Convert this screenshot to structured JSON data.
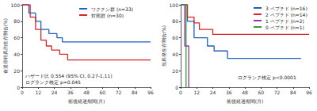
{
  "chart_data": [
    {
      "type": "line",
      "line_style": "step",
      "grid": false,
      "legend": "upper right",
      "x_label": "術後経過期間(月)",
      "y_label": "食道癌特異的生存割合(%)",
      "xlim": [
        0,
        96
      ],
      "xticks": [
        0,
        12,
        24,
        36,
        48,
        60,
        72,
        84,
        96
      ],
      "ylim": [
        0,
        100
      ],
      "yticks": [
        0,
        20,
        40,
        60,
        80,
        100
      ],
      "annotations": [
        "ハザード比 0.554 (95% CI, 0.27-1.11)",
        "ログランク検定 p=0.045"
      ],
      "series": [
        {
          "name": "ワクチン群 (n=33)",
          "color": "#1f5fbf",
          "x": [
            0,
            5,
            10,
            14,
            20,
            26,
            30,
            96
          ],
          "values": [
            100,
            90,
            80,
            70,
            65,
            60,
            55,
            55
          ]
        },
        {
          "name": "対照群 (n=30)",
          "color": "#d62728",
          "x": [
            0,
            6,
            10,
            14,
            18,
            22,
            28,
            34,
            96
          ],
          "values": [
            100,
            85,
            70,
            57,
            50,
            45,
            40,
            33,
            33
          ]
        }
      ]
    },
    {
      "type": "line",
      "line_style": "step",
      "grid": false,
      "legend": "upper right",
      "x_label": "術後経過期間(月)",
      "y_label": "無再発生存割合(%)",
      "xlim": [
        0,
        96
      ],
      "xticks": [
        0,
        12,
        24,
        36,
        48,
        60,
        72,
        84,
        96
      ],
      "ylim": [
        0,
        100
      ],
      "yticks": [
        0,
        20,
        40,
        60,
        80,
        100
      ],
      "annotations": [
        "ログランク検定 p<0.0001"
      ],
      "series": [
        {
          "name": "3 ペプチド (n=16)",
          "color": "#1f5fbf",
          "x": [
            0,
            5,
            10,
            20,
            25,
            35,
            90
          ],
          "values": [
            100,
            80,
            60,
            50,
            44,
            35,
            35
          ]
        },
        {
          "name": "2 ペプチド (n=14)",
          "color": "#d62728",
          "x": [
            0,
            5,
            10,
            14,
            24,
            96
          ],
          "values": [
            100,
            85,
            78,
            70,
            64,
            64
          ]
        },
        {
          "name": "1 ペプチド (n=2)",
          "color": "#9b30b0",
          "x": [
            0,
            3,
            6
          ],
          "values": [
            100,
            50,
            0
          ]
        },
        {
          "name": "0 ペプチド (n=1)",
          "color": "#2ca02c",
          "x": [
            0,
            4
          ],
          "values": [
            100,
            0
          ]
        }
      ]
    }
  ]
}
